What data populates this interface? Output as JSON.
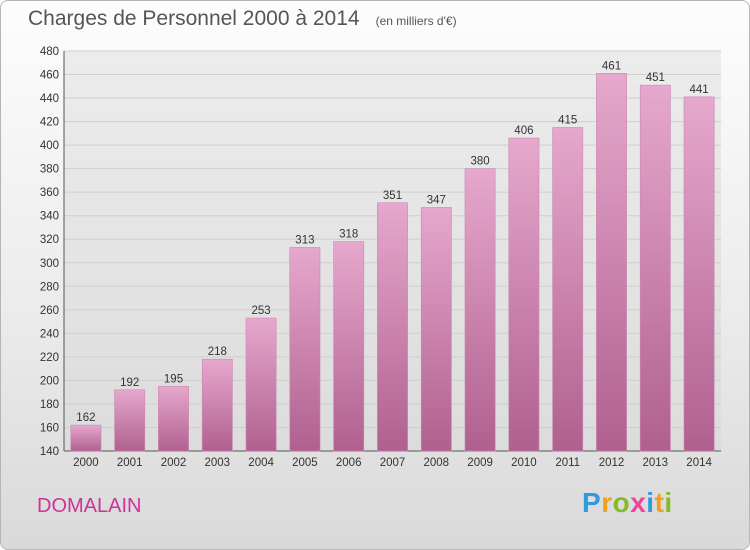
{
  "header": {
    "title": "Charges de Personnel 2000 à 2014",
    "unit": "(en milliers d'€)"
  },
  "footer": {
    "place": "DOMALAIN",
    "logo": "Proxiti"
  },
  "colors": {
    "bar_light": "#e6a8cd",
    "bar_dark": "#b0608f",
    "place": "#cc3399"
  },
  "chart_data": {
    "type": "bar",
    "title": "Charges de Personnel 2000 à 2014",
    "subtitle": "(en milliers d'€)",
    "xlabel": "",
    "ylabel": "",
    "categories": [
      "2000",
      "2001",
      "2002",
      "2003",
      "2004",
      "2005",
      "2006",
      "2007",
      "2008",
      "2009",
      "2010",
      "2011",
      "2012",
      "2013",
      "2014"
    ],
    "values": [
      162,
      192,
      195,
      218,
      253,
      313,
      318,
      351,
      347,
      380,
      406,
      415,
      461,
      451,
      441
    ],
    "ylim": [
      140,
      480
    ],
    "yticks": [
      140,
      160,
      180,
      200,
      220,
      240,
      260,
      280,
      300,
      320,
      340,
      360,
      380,
      400,
      420,
      440,
      460,
      480
    ],
    "grid": "horizontal"
  }
}
